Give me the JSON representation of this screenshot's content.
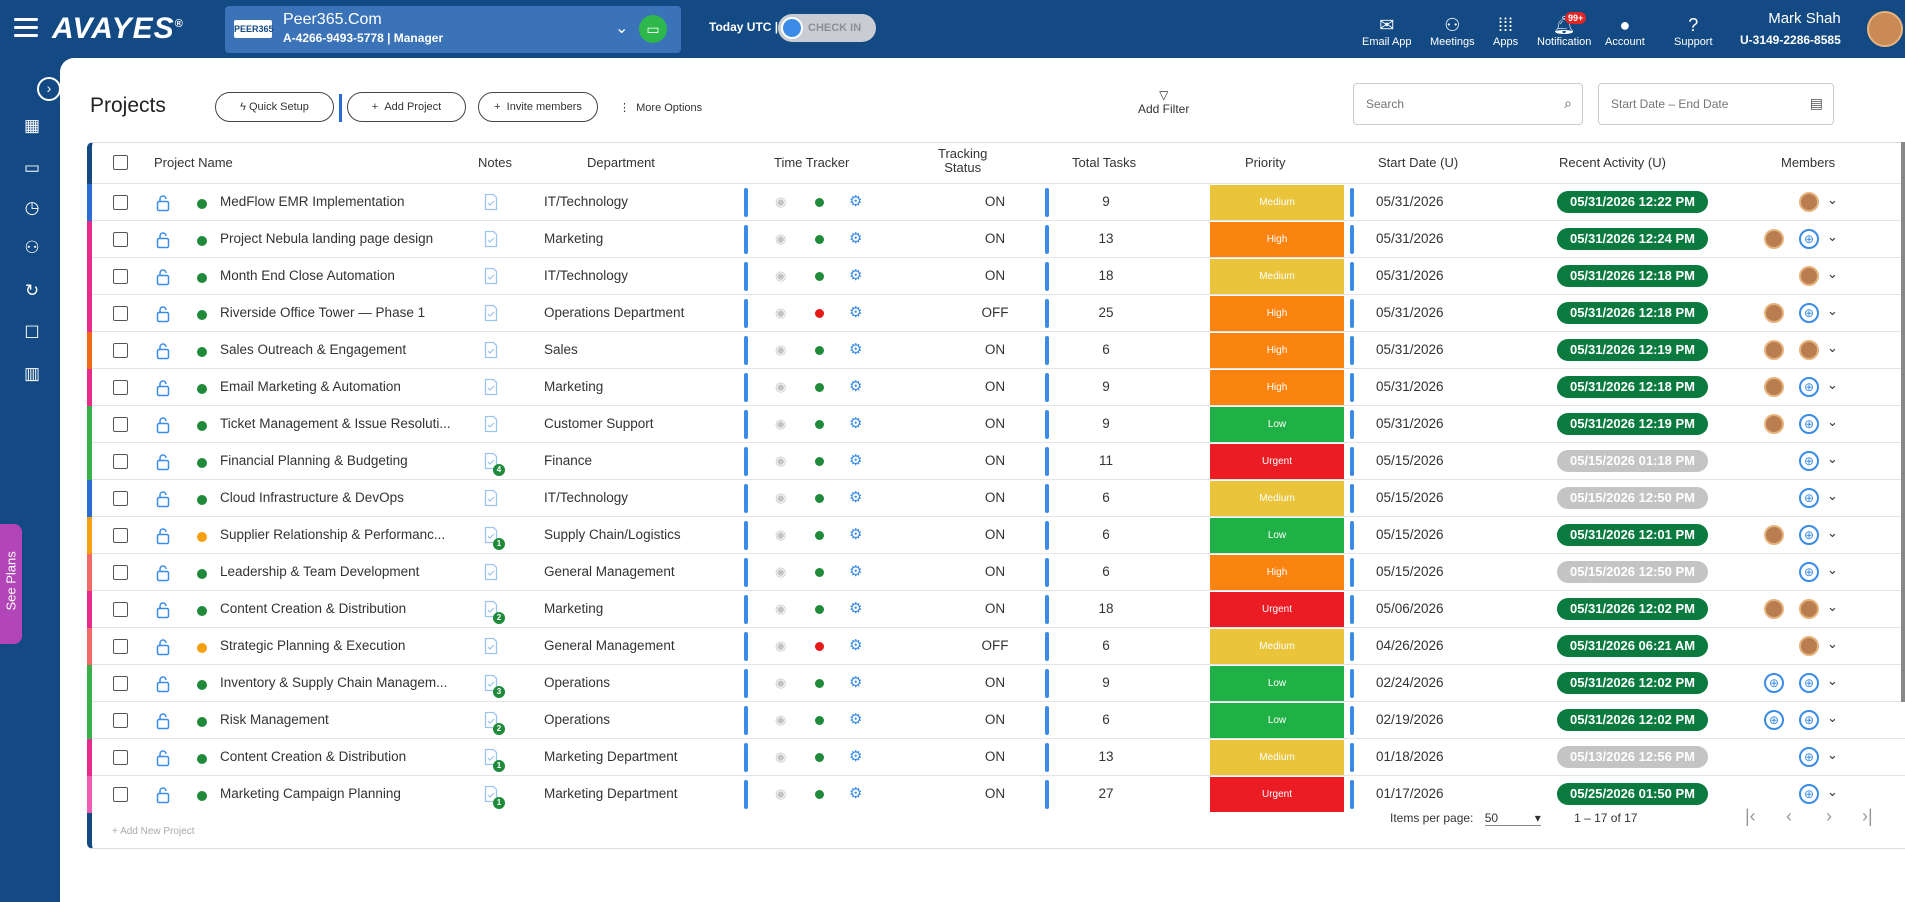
{
  "app": {
    "logo_text": "AVAYES",
    "brand_color": "#134a84"
  },
  "company": {
    "badge": "PEER365",
    "name": "Peer365.Com",
    "subtitle": "A-4266-9493-5778 | Manager"
  },
  "header": {
    "today_label": "Today UTC |",
    "checkin_label": "CHECK IN"
  },
  "nav": [
    {
      "label": "Email App",
      "icon": "mail-icon"
    },
    {
      "label": "Meetings",
      "icon": "people-icon"
    },
    {
      "label": "Apps",
      "icon": "grid-icon"
    },
    {
      "label": "Notification",
      "icon": "bell-icon",
      "badge": "99+"
    },
    {
      "label": "Account",
      "icon": "account-icon"
    },
    {
      "label": "Support",
      "icon": "help-icon"
    }
  ],
  "user": {
    "name": "Mark Shah",
    "id": "U-3149-2286-8585"
  },
  "sidebar": {
    "see_plans": "See Plans"
  },
  "toolbar": {
    "title": "Projects",
    "quick_setup": "Quick Setup",
    "add_project": "Add Project",
    "invite_members": "Invite members",
    "more_options": "More Options",
    "add_filter": "Add Filter",
    "search_placeholder": "Search",
    "date_placeholder": "Start Date – End Date"
  },
  "columns": {
    "project_name": "Project Name",
    "notes": "Notes",
    "department": "Department",
    "time_tracker": "Time Tracker",
    "tracking_status": "Tracking\nStatus",
    "total_tasks": "Total Tasks",
    "priority": "Priority",
    "start_date": "Start Date (U)",
    "recent_activity": "Recent Activity (U)",
    "members": "Members"
  },
  "priority_colors": {
    "Medium": "#eac43b",
    "High": "#fb8411",
    "Low": "#1fb046",
    "Urgent": "#ec1c24"
  },
  "rows": [
    {
      "name": "MedFlow EMR Implementation",
      "strip": "#2b6cd4",
      "dot": "#1f8a3a",
      "notes": "",
      "department": "IT/Technology",
      "tracker": "#1f8a3a",
      "tracking": "ON",
      "tasks": "9",
      "priority": "Medium",
      "start": "05/31/2026",
      "activity": "05/31/2026 12:22 PM",
      "act_color": "#0a7a3f",
      "members": [
        "avatar"
      ]
    },
    {
      "name": "Project Nebula landing page design",
      "strip": "#e62b8a",
      "dot": "#1f8a3a",
      "notes": "",
      "department": "Marketing",
      "tracker": "#1f8a3a",
      "tracking": "ON",
      "tasks": "13",
      "priority": "High",
      "start": "05/31/2026",
      "activity": "05/31/2026 12:24 PM",
      "act_color": "#0a7a3f",
      "members": [
        "avatar",
        "globe"
      ]
    },
    {
      "name": "Month End Close Automation",
      "strip": "#e62b8a",
      "dot": "#1f8a3a",
      "notes": "",
      "department": "IT/Technology",
      "tracker": "#1f8a3a",
      "tracking": "ON",
      "tasks": "18",
      "priority": "Medium",
      "start": "05/31/2026",
      "activity": "05/31/2026 12:18 PM",
      "act_color": "#0a7a3f",
      "members": [
        "avatar"
      ]
    },
    {
      "name": "Riverside Office Tower — Phase 1",
      "strip": "#e62b8a",
      "dot": "#1f8a3a",
      "notes": "",
      "department": "Operations Department",
      "tracker": "#e61919",
      "tracking": "OFF",
      "tasks": "25",
      "priority": "High",
      "start": "05/31/2026",
      "activity": "05/31/2026 12:18 PM",
      "act_color": "#0a7a3f",
      "members": [
        "avatar",
        "globe"
      ]
    },
    {
      "name": "Sales Outreach & Engagement",
      "strip": "#f06a1c",
      "dot": "#1f8a3a",
      "notes": "",
      "department": "Sales",
      "tracker": "#1f8a3a",
      "tracking": "ON",
      "tasks": "6",
      "priority": "High",
      "start": "05/31/2026",
      "activity": "05/31/2026 12:19 PM",
      "act_color": "#0a7a3f",
      "members": [
        "avatar",
        "avatar"
      ]
    },
    {
      "name": "Email Marketing & Automation",
      "strip": "#e62b8a",
      "dot": "#1f8a3a",
      "notes": "",
      "department": "Marketing",
      "tracker": "#1f8a3a",
      "tracking": "ON",
      "tasks": "9",
      "priority": "High",
      "start": "05/31/2026",
      "activity": "05/31/2026 12:18 PM",
      "act_color": "#0a7a3f",
      "members": [
        "avatar",
        "globe"
      ]
    },
    {
      "name": "Ticket Management & Issue Resoluti...",
      "strip": "#3ab04b",
      "dot": "#1f8a3a",
      "notes": "",
      "department": "Customer Support",
      "tracker": "#1f8a3a",
      "tracking": "ON",
      "tasks": "9",
      "priority": "Low",
      "start": "05/31/2026",
      "activity": "05/31/2026 12:19 PM",
      "act_color": "#0a7a3f",
      "members": [
        "avatar",
        "globe"
      ]
    },
    {
      "name": "Financial Planning & Budgeting",
      "strip": "#3ab04b",
      "dot": "#1f8a3a",
      "notes": "4",
      "department": "Finance",
      "tracker": "#1f8a3a",
      "tracking": "ON",
      "tasks": "11",
      "priority": "Urgent",
      "start": "05/15/2026",
      "activity": "05/15/2026 01:18 PM",
      "act_color": "#c4c4c4",
      "members": [
        "globe"
      ]
    },
    {
      "name": "Cloud Infrastructure & DevOps",
      "strip": "#2b6cd4",
      "dot": "#1f8a3a",
      "notes": "",
      "department": "IT/Technology",
      "tracker": "#1f8a3a",
      "tracking": "ON",
      "tasks": "6",
      "priority": "Medium",
      "start": "05/15/2026",
      "activity": "05/15/2026 12:50 PM",
      "act_color": "#c4c4c4",
      "members": [
        "globe"
      ]
    },
    {
      "name": "Supplier Relationship & Performanc...",
      "strip": "#f5a012",
      "dot": "#f5a012",
      "notes": "1",
      "department": "Supply Chain/Logistics",
      "tracker": "#1f8a3a",
      "tracking": "ON",
      "tasks": "6",
      "priority": "Low",
      "start": "05/15/2026",
      "activity": "05/31/2026 12:01 PM",
      "act_color": "#0a7a3f",
      "members": [
        "avatar",
        "globe"
      ]
    },
    {
      "name": "Leadership & Team Development",
      "strip": "#f06a6a",
      "dot": "#1f8a3a",
      "notes": "",
      "department": "General Management",
      "tracker": "#1f8a3a",
      "tracking": "ON",
      "tasks": "6",
      "priority": "High",
      "start": "05/15/2026",
      "activity": "05/15/2026 12:50 PM",
      "act_color": "#c4c4c4",
      "members": [
        "globe"
      ]
    },
    {
      "name": "Content Creation & Distribution",
      "strip": "#e62b8a",
      "dot": "#1f8a3a",
      "notes": "2",
      "department": "Marketing",
      "tracker": "#1f8a3a",
      "tracking": "ON",
      "tasks": "18",
      "priority": "Urgent",
      "start": "05/06/2026",
      "activity": "05/31/2026 12:02 PM",
      "act_color": "#0a7a3f",
      "members": [
        "avatar",
        "avatar"
      ]
    },
    {
      "name": "Strategic Planning & Execution",
      "strip": "#f06a6a",
      "dot": "#f5a012",
      "notes": "",
      "department": "General Management",
      "tracker": "#e61919",
      "tracking": "OFF",
      "tasks": "6",
      "priority": "Medium",
      "start": "04/26/2026",
      "activity": "05/31/2026 06:21 AM",
      "act_color": "#0a7a3f",
      "members": [
        "avatar"
      ]
    },
    {
      "name": "Inventory & Supply Chain Managem...",
      "strip": "#3ab04b",
      "dot": "#1f8a3a",
      "notes": "3",
      "department": "Operations",
      "tracker": "#1f8a3a",
      "tracking": "ON",
      "tasks": "9",
      "priority": "Low",
      "start": "02/24/2026",
      "activity": "05/31/2026 12:02 PM",
      "act_color": "#0a7a3f",
      "members": [
        "globe",
        "globe"
      ]
    },
    {
      "name": "Risk Management",
      "strip": "#3ab04b",
      "dot": "#1f8a3a",
      "notes": "2",
      "department": "Operations",
      "tracker": "#1f8a3a",
      "tracking": "ON",
      "tasks": "6",
      "priority": "Low",
      "start": "02/19/2026",
      "activity": "05/31/2026 12:02 PM",
      "act_color": "#0a7a3f",
      "members": [
        "globe",
        "globe"
      ]
    },
    {
      "name": "Content Creation & Distribution",
      "strip": "#e62b8a",
      "dot": "#1f8a3a",
      "notes": "1",
      "department": "Marketing Department",
      "tracker": "#1f8a3a",
      "tracking": "ON",
      "tasks": "13",
      "priority": "Medium",
      "start": "01/18/2026",
      "activity": "05/13/2026 12:56 PM",
      "act_color": "#c4c4c4",
      "members": [
        "globe"
      ]
    },
    {
      "name": "Marketing Campaign Planning",
      "strip": "#ef5db5",
      "dot": "#1f8a3a",
      "notes": "1",
      "department": "Marketing Department",
      "tracker": "#1f8a3a",
      "tracking": "ON",
      "tasks": "27",
      "priority": "Urgent",
      "start": "01/17/2026",
      "activity": "05/25/2026 01:50 PM",
      "act_color": "#0a7a3f",
      "members": [
        "globe"
      ]
    }
  ],
  "add_new": "+ Add New Project",
  "pagination": {
    "items_label": "Items per page:",
    "per_page": "50",
    "range": "1 – 17 of 17"
  }
}
